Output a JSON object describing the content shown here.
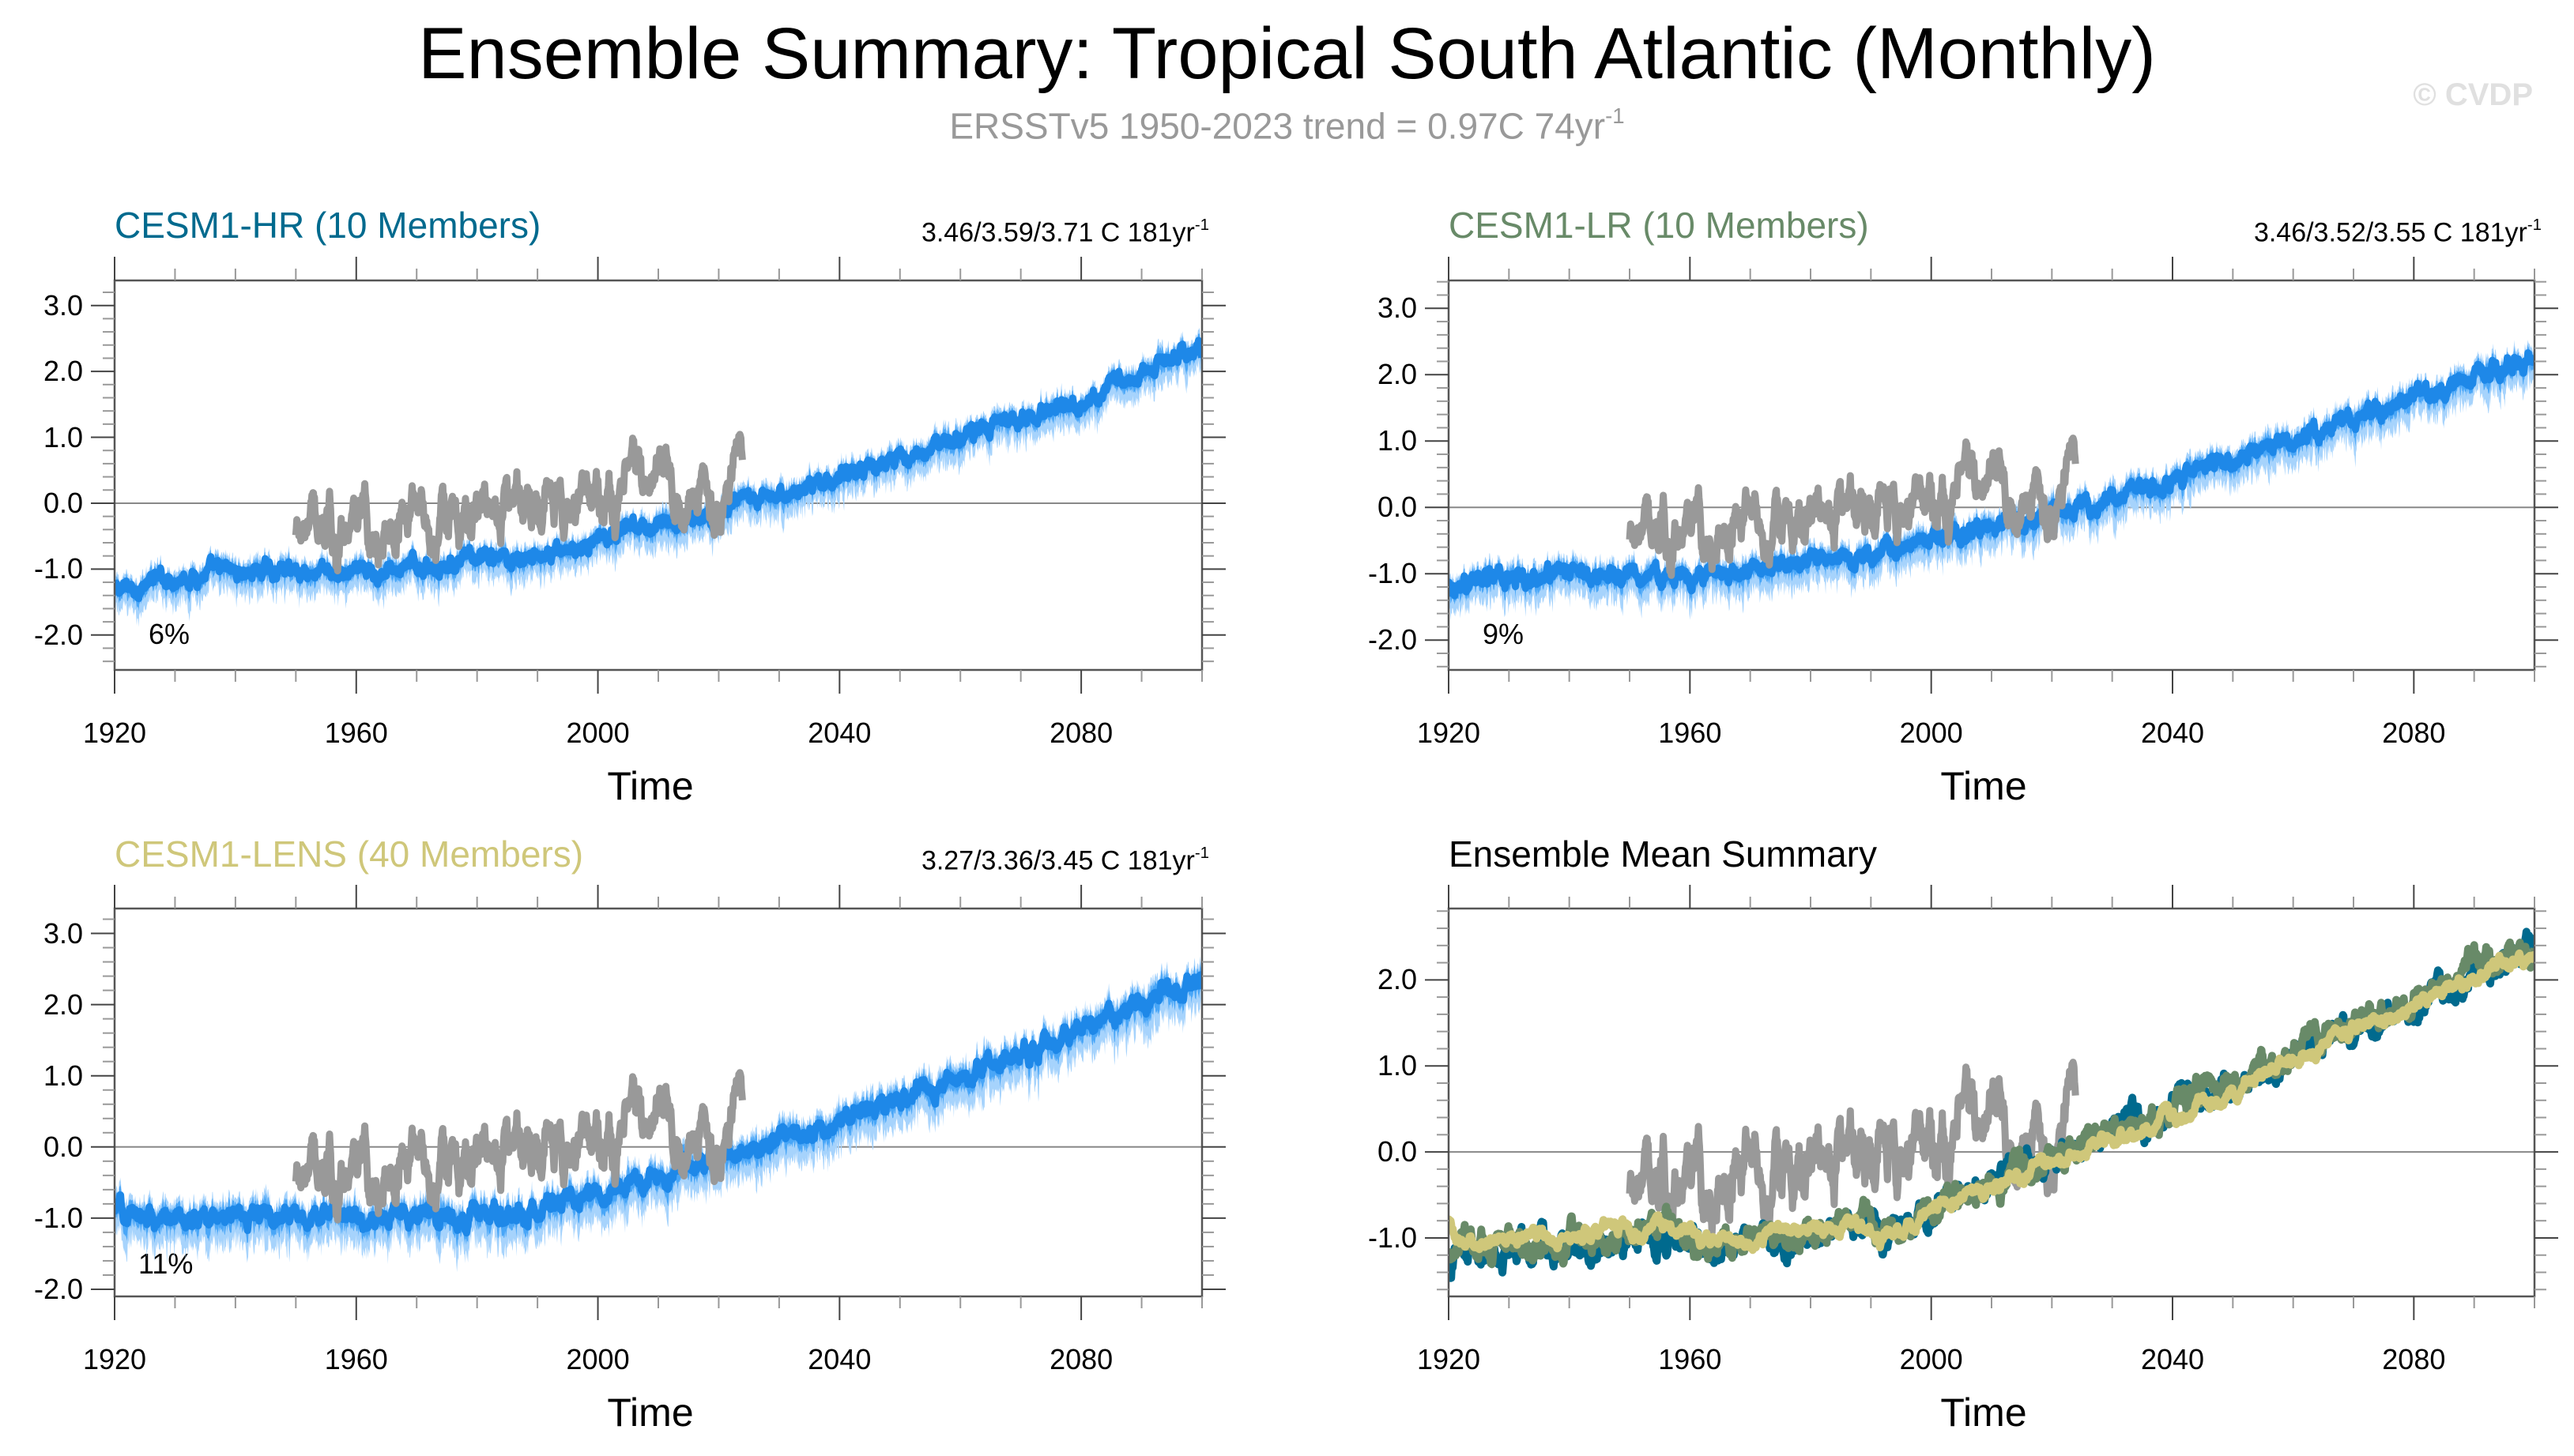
{
  "header": {
    "title": "Ensemble Summary: Tropical South Atlantic (Monthly)",
    "subtitle_text": "ERSSTv5 1950-2023 trend = 0.97C 74yr",
    "subtitle_sup": "-1",
    "watermark": "© CVDP"
  },
  "colors": {
    "hr": "#006a8e",
    "lr": "#688a68",
    "lens": "#cfc77a",
    "obs": "#999999",
    "spread_dark": "#1e88e8",
    "spread_mid": "#49a6f7",
    "spread_light": "#a6d3fc",
    "zero_line": "#888888",
    "axis": "#555555"
  },
  "chart_data": [
    {
      "id": "hr",
      "type": "line",
      "title": "CESM1-HR (10 Members)",
      "title_color": "#006a8e",
      "trend_text": "3.46/3.59/3.71 C 181yr",
      "trend_sup": "-1",
      "percent_label": "6%",
      "xlabel": "Time",
      "ylabel": "",
      "xlim": [
        1920,
        2100
      ],
      "ylim": [
        -2.53,
        3.38
      ],
      "xticks": [
        1920,
        1960,
        2000,
        2040,
        2080
      ],
      "yticks": [
        -2.0,
        -1.0,
        0.0,
        1.0,
        2.0,
        3.0
      ],
      "ytick_labels": [
        "-2.0",
        "-1.0",
        "0.0",
        "1.0",
        "2.0",
        "3.0"
      ],
      "series": [
        {
          "name": "ensemble spread (min-max)",
          "kind": "band",
          "anchors": [
            [
              1920,
              -1.35
            ],
            [
              1930,
              -1.1
            ],
            [
              1950,
              -1.0
            ],
            [
              1960,
              -1.1
            ],
            [
              1970,
              -0.95
            ],
            [
              1990,
              -0.8
            ],
            [
              2000,
              -0.55
            ],
            [
              2020,
              -0.15
            ],
            [
              2040,
              0.4
            ],
            [
              2060,
              1.0
            ],
            [
              2080,
              1.6
            ],
            [
              2100,
              2.35
            ]
          ],
          "half_width": 0.35
        },
        {
          "name": "ERSSTv5",
          "kind": "obs",
          "start": 1950,
          "end": 2024,
          "anchors": [
            [
              1950,
              -0.5
            ],
            [
              1955,
              -0.5
            ],
            [
              1960,
              -0.55
            ],
            [
              1965,
              -0.3
            ],
            [
              1970,
              0.1
            ],
            [
              1975,
              -0.4
            ],
            [
              1980,
              -0.1
            ],
            [
              1985,
              0.1
            ],
            [
              1990,
              0.2
            ],
            [
              1995,
              -0.2
            ],
            [
              2000,
              0.15
            ],
            [
              2005,
              0.1
            ],
            [
              2010,
              0.2
            ],
            [
              2015,
              0.0
            ],
            [
              2020,
              0.35
            ],
            [
              2024,
              0.7
            ]
          ],
          "amp": 0.55
        }
      ]
    },
    {
      "id": "lr",
      "type": "line",
      "title": "CESM1-LR (10 Members)",
      "title_color": "#688a68",
      "trend_text": "3.46/3.52/3.55 C 181yr",
      "trend_sup": "-1",
      "percent_label": "9%",
      "xlabel": "Time",
      "ylabel": "",
      "xlim": [
        1920,
        2100
      ],
      "ylim": [
        -2.45,
        3.42
      ],
      "xticks": [
        1920,
        1960,
        2000,
        2040,
        2080
      ],
      "yticks": [
        -2.0,
        -1.0,
        0.0,
        1.0,
        2.0,
        3.0
      ],
      "ytick_labels": [
        "-2.0",
        "-1.0",
        "0.0",
        "1.0",
        "2.0",
        "3.0"
      ],
      "series": [
        {
          "name": "ensemble spread (min-max)",
          "kind": "band",
          "anchors": [
            [
              1920,
              -1.15
            ],
            [
              1930,
              -1.05
            ],
            [
              1950,
              -0.95
            ],
            [
              1960,
              -1.05
            ],
            [
              1970,
              -0.95
            ],
            [
              1990,
              -0.75
            ],
            [
              2000,
              -0.5
            ],
            [
              2020,
              -0.1
            ],
            [
              2040,
              0.4
            ],
            [
              2060,
              1.05
            ],
            [
              2080,
              1.65
            ],
            [
              2100,
              2.3
            ]
          ],
          "half_width": 0.38
        },
        {
          "name": "ERSSTv5",
          "kind": "obs",
          "start": 1950,
          "end": 2024,
          "anchors": [
            [
              1950,
              -0.5
            ],
            [
              1955,
              -0.5
            ],
            [
              1960,
              -0.55
            ],
            [
              1965,
              -0.3
            ],
            [
              1970,
              0.1
            ],
            [
              1975,
              -0.4
            ],
            [
              1980,
              -0.1
            ],
            [
              1985,
              0.1
            ],
            [
              1990,
              0.2
            ],
            [
              1995,
              -0.2
            ],
            [
              2000,
              0.15
            ],
            [
              2005,
              0.1
            ],
            [
              2010,
              0.2
            ],
            [
              2015,
              0.0
            ],
            [
              2020,
              0.35
            ],
            [
              2024,
              0.7
            ]
          ],
          "amp": 0.55
        }
      ]
    },
    {
      "id": "lens",
      "type": "line",
      "title": "CESM1-LENS (40 Members)",
      "title_color": "#cfc77a",
      "trend_text": "3.27/3.36/3.45 C 181yr",
      "trend_sup": "-1",
      "percent_label": "11%",
      "xlabel": "Time",
      "ylabel": "",
      "xlim": [
        1920,
        2100
      ],
      "ylim": [
        -2.1,
        3.35
      ],
      "xticks": [
        1920,
        1960,
        2000,
        2040,
        2080
      ],
      "yticks": [
        -2.0,
        -1.0,
        0.0,
        1.0,
        2.0,
        3.0
      ],
      "ytick_labels": [
        "-2.0",
        "-1.0",
        "0.0",
        "1.0",
        "2.0",
        "3.0"
      ],
      "series": [
        {
          "name": "ensemble spread (min-max)",
          "kind": "band",
          "anchors": [
            [
              1920,
              -0.85
            ],
            [
              1925,
              -1.0
            ],
            [
              1950,
              -0.95
            ],
            [
              1960,
              -1.0
            ],
            [
              1980,
              -0.95
            ],
            [
              1990,
              -0.9
            ],
            [
              2000,
              -0.65
            ],
            [
              2020,
              -0.15
            ],
            [
              2040,
              0.35
            ],
            [
              2060,
              1.0
            ],
            [
              2080,
              1.65
            ],
            [
              2100,
              2.35
            ]
          ],
          "half_width": 0.42
        },
        {
          "name": "ERSSTv5",
          "kind": "obs",
          "start": 1950,
          "end": 2024,
          "anchors": [
            [
              1950,
              -0.5
            ],
            [
              1955,
              -0.5
            ],
            [
              1960,
              -0.55
            ],
            [
              1965,
              -0.3
            ],
            [
              1970,
              0.1
            ],
            [
              1975,
              -0.4
            ],
            [
              1980,
              -0.1
            ],
            [
              1985,
              0.1
            ],
            [
              1990,
              0.2
            ],
            [
              1995,
              -0.2
            ],
            [
              2000,
              0.15
            ],
            [
              2005,
              0.1
            ],
            [
              2010,
              0.2
            ],
            [
              2015,
              0.0
            ],
            [
              2020,
              0.35
            ],
            [
              2024,
              0.7
            ]
          ],
          "amp": 0.55
        }
      ]
    },
    {
      "id": "mean",
      "type": "line",
      "title": "Ensemble Mean Summary",
      "title_color": "#000000",
      "trend_text": "",
      "trend_sup": "",
      "percent_label": "",
      "xlabel": "Time",
      "ylabel": "",
      "xlim": [
        1920,
        2100
      ],
      "ylim": [
        -1.68,
        2.83
      ],
      "xticks": [
        1920,
        1960,
        2000,
        2040,
        2080
      ],
      "yticks": [
        -1.0,
        0.0,
        1.0,
        2.0
      ],
      "ytick_labels": [
        "-1.0",
        "0.0",
        "1.0",
        "2.0"
      ],
      "series": [
        {
          "name": "ERSSTv5",
          "kind": "obs",
          "color_key": "obs",
          "start": 1950,
          "end": 2024,
          "anchors": [
            [
              1950,
              -0.5
            ],
            [
              1955,
              -0.5
            ],
            [
              1960,
              -0.55
            ],
            [
              1965,
              -0.3
            ],
            [
              1970,
              0.1
            ],
            [
              1975,
              -0.4
            ],
            [
              1980,
              -0.1
            ],
            [
              1985,
              0.1
            ],
            [
              1990,
              0.2
            ],
            [
              1995,
              -0.2
            ],
            [
              2000,
              0.15
            ],
            [
              2005,
              0.1
            ],
            [
              2010,
              0.2
            ],
            [
              2015,
              0.0
            ],
            [
              2020,
              0.35
            ],
            [
              2024,
              0.7
            ]
          ],
          "amp": 0.55
        },
        {
          "name": "CESM1-HR",
          "kind": "mean",
          "color_key": "hr",
          "anchors": [
            [
              1920,
              -1.45
            ],
            [
              1921,
              -1.15
            ],
            [
              1940,
              -1.1
            ],
            [
              1960,
              -1.0
            ],
            [
              1962,
              -1.2
            ],
            [
              1970,
              -1.05
            ],
            [
              1990,
              -0.85
            ],
            [
              1992,
              -1.05
            ],
            [
              2000,
              -0.65
            ],
            [
              2020,
              -0.05
            ],
            [
              2040,
              0.5
            ],
            [
              2060,
              1.1
            ],
            [
              2080,
              1.75
            ],
            [
              2100,
              2.35
            ]
          ],
          "amp": 0.1
        },
        {
          "name": "CESM1-LR",
          "kind": "mean",
          "color_key": "lr",
          "anchors": [
            [
              1920,
              -1.2
            ],
            [
              1922,
              -1.1
            ],
            [
              1940,
              -1.0
            ],
            [
              1960,
              -0.95
            ],
            [
              1962,
              -1.2
            ],
            [
              1970,
              -1.0
            ],
            [
              1990,
              -0.8
            ],
            [
              1992,
              -1.1
            ],
            [
              2000,
              -0.65
            ],
            [
              2020,
              -0.05
            ],
            [
              2040,
              0.5
            ],
            [
              2060,
              1.15
            ],
            [
              2080,
              1.8
            ],
            [
              2100,
              2.4
            ]
          ],
          "amp": 0.1
        },
        {
          "name": "CESM1-LENS",
          "kind": "mean",
          "color_key": "lens",
          "anchors": [
            [
              1920,
              -0.8
            ],
            [
              1921,
              -1.0
            ],
            [
              1940,
              -0.95
            ],
            [
              1960,
              -0.9
            ],
            [
              1962,
              -1.1
            ],
            [
              1970,
              -0.98
            ],
            [
              1990,
              -0.85
            ],
            [
              1992,
              -1.05
            ],
            [
              2000,
              -0.7
            ],
            [
              2020,
              -0.1
            ],
            [
              2040,
              0.4
            ],
            [
              2060,
              1.05
            ],
            [
              2080,
              1.7
            ],
            [
              2100,
              2.35
            ]
          ],
          "amp": 0.06
        }
      ]
    }
  ]
}
